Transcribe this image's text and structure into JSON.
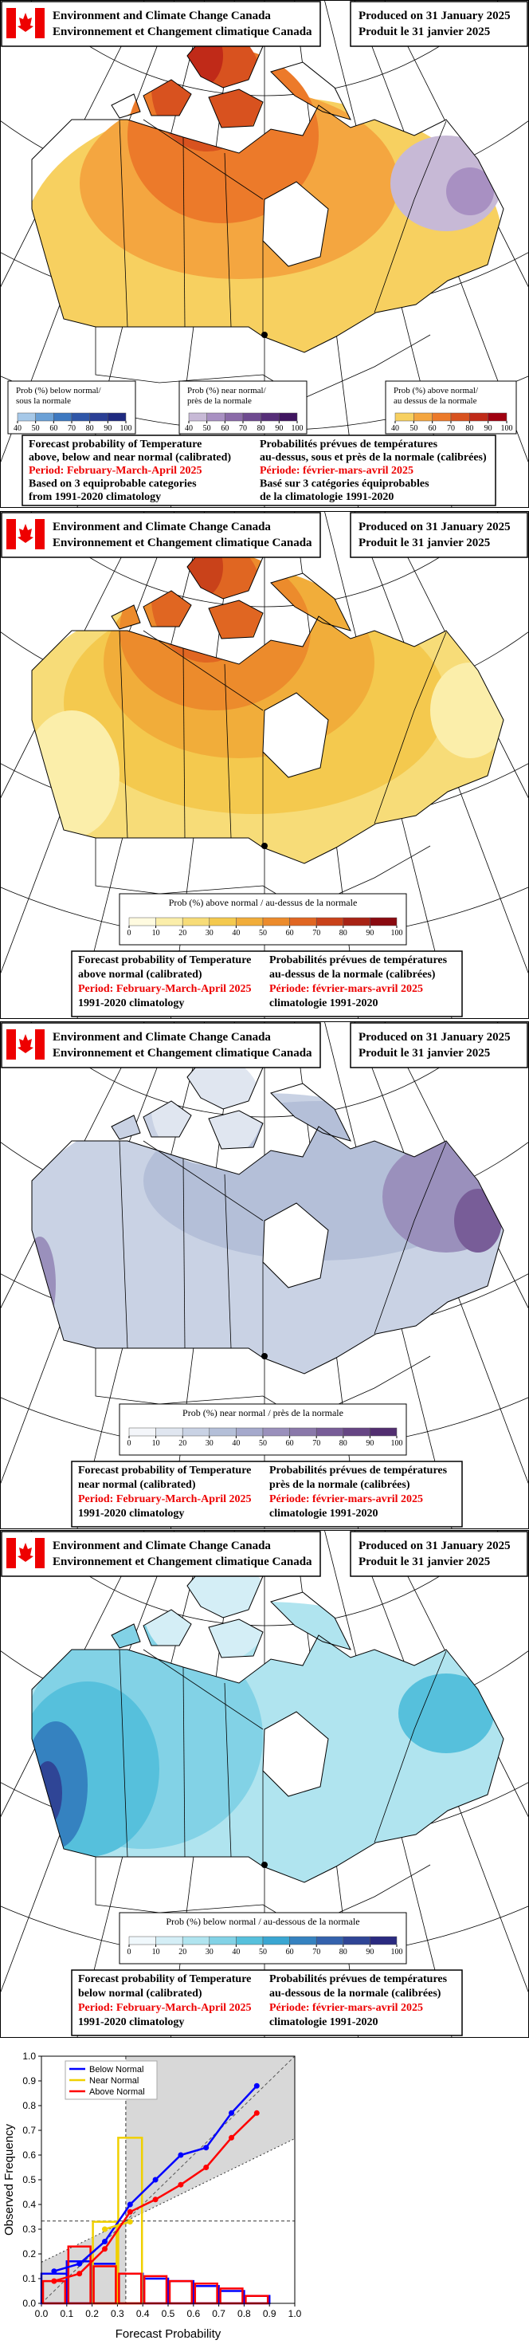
{
  "panels": [
    {
      "agency": [
        "Environment and Climate Change Canada",
        "Environnement et Changement climatique Canada"
      ],
      "produced": [
        "Produced on 31 January 2025",
        "Produit le 31 janvier 2025"
      ],
      "legend": [
        {
          "title": [
            "Prob (%) below normal/",
            "sous la normale"
          ],
          "ticks": [
            40,
            50,
            60,
            70,
            80,
            90,
            100
          ],
          "colors": [
            "#a6c8e8",
            "#6aa0d6",
            "#3d78c0",
            "#2f56a8",
            "#2a3f95",
            "#1f2a80"
          ]
        },
        {
          "title": [
            "Prob (%) near normal/",
            "près de la normale"
          ],
          "ticks": [
            40,
            50,
            60,
            70,
            80,
            90,
            100
          ],
          "colors": [
            "#c7b9d6",
            "#a890c2",
            "#8a6aa8",
            "#6e4a90",
            "#562e78",
            "#401560"
          ]
        },
        {
          "title": [
            "Prob (%) above normal/",
            "au dessus de la normale"
          ],
          "ticks": [
            40,
            50,
            60,
            70,
            80,
            90,
            100
          ],
          "colors": [
            "#f7d060",
            "#f4a640",
            "#ec7a2a",
            "#d8521f",
            "#c02a18",
            "#a00010"
          ]
        }
      ],
      "caption_en": [
        "Forecast probability of Temperature",
        "above, below and near normal (calibrated)",
        "Period: February-March-April 2025",
        "Based on 3 equiprobable categories",
        "from 1991-2020 climatology"
      ],
      "caption_fr": [
        "Probabilités prévues de températures",
        "au-dessus, sous et près de la normale (calibrées)",
        "Période: février-mars-avril 2025",
        "Basé sur 3 catégories équiprobables",
        "de la climatologie 1991-2020"
      ]
    },
    {
      "agency": [
        "Environment and Climate Change Canada",
        "Environnement et Changement climatique Canada"
      ],
      "produced": [
        "Produced on 31 January 2025",
        "Produit le 31 janvier 2025"
      ],
      "legend": [
        {
          "title": [
            "Prob (%) above normal / au-dessus de la normale"
          ],
          "ticks": [
            0,
            10,
            20,
            30,
            40,
            50,
            60,
            70,
            80,
            90,
            100
          ],
          "colors": [
            "#fffbe0",
            "#fbeeaa",
            "#f7dc78",
            "#f4c94e",
            "#f1ad3a",
            "#ec8b2c",
            "#e06622",
            "#c9421a",
            "#a82315",
            "#8a0a10"
          ]
        }
      ],
      "caption_en": [
        "Forecast probability of Temperature",
        "above normal (calibrated)",
        "Period: February-March-April 2025",
        "1991-2020 climatology"
      ],
      "caption_fr": [
        "Probabilités prévues de températures",
        "au-dessus de la normale (calibrées)",
        "Période: février-mars-avril 2025",
        "climatologie 1991-2020"
      ]
    },
    {
      "agency": [
        "Environment and Climate Change Canada",
        "Environnement et Changement climatique Canada"
      ],
      "produced": [
        "Produced on 31 January 2025",
        "Produit le 31 janvier 2025"
      ],
      "legend": [
        {
          "title": [
            "Prob (%) near normal / près de la normale"
          ],
          "ticks": [
            0,
            10,
            20,
            30,
            40,
            50,
            60,
            70,
            80,
            90,
            100
          ],
          "colors": [
            "#f4f6fa",
            "#e0e6f0",
            "#c9d2e4",
            "#b4bfd8",
            "#a5a9cc",
            "#9a90bc",
            "#8a78aa",
            "#785d98",
            "#664584",
            "#522e70"
          ]
        }
      ],
      "caption_en": [
        "Forecast probability of Temperature",
        "near normal (calibrated)",
        "Period: February-March-April 2025",
        "1991-2020 climatology"
      ],
      "caption_fr": [
        "Probabilités prévues de températures",
        "près de la normale (calibrées)",
        "Période: février-mars-avril 2025",
        "climatologie 1991-2020"
      ]
    },
    {
      "agency": [
        "Environment and Climate Change Canada",
        "Environnement et Changement climatique Canada"
      ],
      "produced": [
        "Produced on 31 January 2025",
        "Produit le 31 janvier 2025"
      ],
      "legend": [
        {
          "title": [
            "Prob (%) below normal / au-dessous de la normale"
          ],
          "ticks": [
            0,
            10,
            20,
            30,
            40,
            50,
            60,
            70,
            80,
            90,
            100
          ],
          "colors": [
            "#f0f8fc",
            "#d4eef6",
            "#b0e4ef",
            "#82d2e6",
            "#56c0dc",
            "#3aa6d2",
            "#3582c0",
            "#3462ad",
            "#2f4596",
            "#2a2a80"
          ]
        }
      ],
      "caption_en": [
        "Forecast probability of Temperature",
        "below normal (calibrated)",
        "Period: February-March-April 2025",
        "1991-2020 climatology"
      ],
      "caption_fr": [
        "Probabilités prévues de températures",
        "au-dessous de la normale (calibrées)",
        "Période: février-mars-avril 2025",
        "climatologie 1991-2020"
      ]
    }
  ],
  "chart_data": {
    "type": "line",
    "x_label": "Forecast Probability",
    "y_label": "Observed Frequency",
    "x": [
      0.05,
      0.15,
      0.25,
      0.35,
      0.45,
      0.55,
      0.65,
      0.75,
      0.85
    ],
    "bins": [
      0,
      0.1,
      0.2,
      0.3,
      0.4,
      0.5,
      0.6,
      0.7,
      0.8,
      0.9,
      1
    ],
    "climatology": 0.333,
    "xlim": [
      0,
      1
    ],
    "ylim": [
      0,
      1
    ],
    "xticks": [
      {
        "value": 0,
        "label": "0.0"
      },
      0.1,
      0.2,
      0.3,
      0.4,
      0.5,
      0.6,
      0.7,
      0.8,
      0.9,
      {
        "value": 1,
        "label": "1.0"
      }
    ],
    "yticks": [
      {
        "value": 0,
        "label": "0.0"
      },
      0.1,
      0.2,
      0.3,
      0.4,
      0.5,
      0.6,
      0.7,
      0.8,
      0.9,
      {
        "value": 1,
        "label": "1.0"
      }
    ],
    "legend": "upper left",
    "series": [
      {
        "name": "Below Normal",
        "color": "#0000ff",
        "values": [
          0.13,
          0.16,
          0.25,
          0.4,
          0.5,
          0.6,
          0.63,
          0.77,
          0.88
        ],
        "hist": [
          0.12,
          0.17,
          0.16,
          0.12,
          0.1,
          0.09,
          0.07,
          0.05,
          0.03,
          0
        ]
      },
      {
        "name": "Near Normal",
        "color": "#f0d000",
        "values": [
          null,
          null,
          0.3,
          0.33,
          null,
          null,
          null,
          null,
          null
        ],
        "hist": [
          0,
          0,
          0.33,
          0.67,
          0,
          0,
          0,
          0,
          0,
          0
        ]
      },
      {
        "name": "Above Normal",
        "color": "#ff0000",
        "values": [
          0.09,
          0.12,
          0.22,
          0.37,
          0.42,
          0.48,
          0.55,
          0.67,
          0.77
        ],
        "hist": [
          0.09,
          0.23,
          0.15,
          0.12,
          0.11,
          0.09,
          0.08,
          0.06,
          0.03,
          0
        ]
      }
    ]
  }
}
